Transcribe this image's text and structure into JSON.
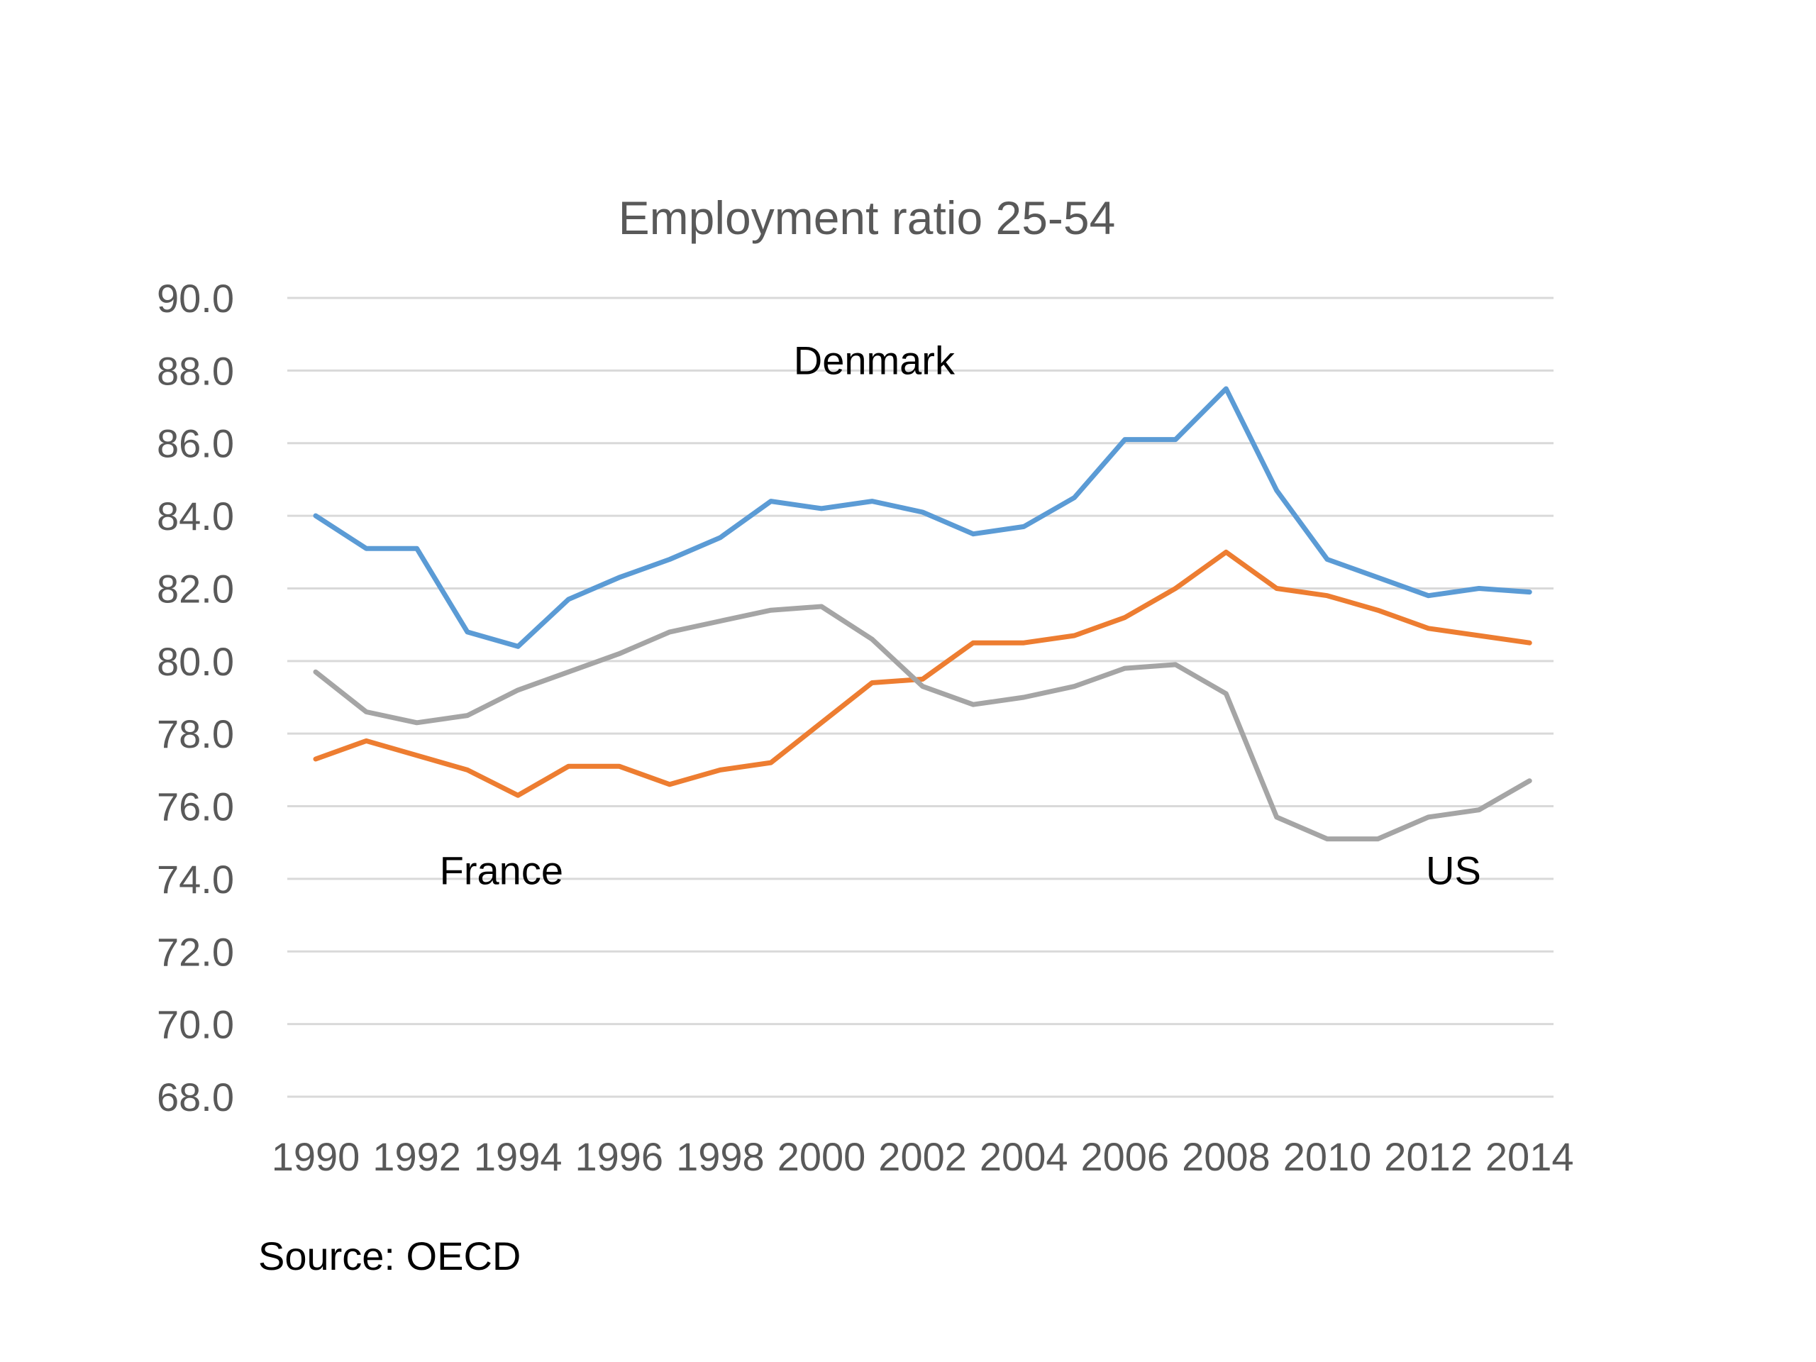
{
  "chart_data": {
    "type": "line",
    "title": "Employment ratio 25-54",
    "xlabel": "",
    "ylabel": "",
    "ylim": [
      68,
      90
    ],
    "y_ticks": [
      "90.0",
      "88.0",
      "86.0",
      "84.0",
      "82.0",
      "80.0",
      "78.0",
      "76.0",
      "74.0",
      "72.0",
      "70.0",
      "68.0"
    ],
    "x_ticks": [
      "1990",
      "1992",
      "1994",
      "1996",
      "1998",
      "2000",
      "2002",
      "2004",
      "2006",
      "2008",
      "2010",
      "2012",
      "2014"
    ],
    "x": [
      1990,
      1991,
      1992,
      1993,
      1994,
      1995,
      1996,
      1997,
      1998,
      1999,
      2000,
      2001,
      2002,
      2003,
      2004,
      2005,
      2006,
      2007,
      2008,
      2009,
      2010,
      2011,
      2012,
      2013,
      2014
    ],
    "grid": true,
    "legend": "none",
    "series": [
      {
        "name": "Denmark",
        "color": "#5B9BD5",
        "values": [
          84.0,
          83.1,
          83.1,
          80.8,
          80.4,
          81.7,
          82.3,
          82.8,
          83.4,
          84.4,
          84.2,
          84.4,
          84.1,
          83.5,
          83.7,
          84.5,
          86.1,
          86.1,
          87.5,
          84.7,
          82.8,
          82.3,
          81.8,
          82.0,
          81.9
        ]
      },
      {
        "name": "France",
        "color": "#ED7D31",
        "values": [
          77.3,
          77.8,
          77.4,
          77.0,
          76.3,
          77.1,
          77.1,
          76.6,
          77.0,
          77.2,
          78.3,
          79.4,
          79.5,
          80.5,
          80.5,
          80.7,
          81.2,
          82.0,
          83.0,
          82.0,
          81.8,
          81.4,
          80.9,
          80.7,
          80.5
        ]
      },
      {
        "name": "US",
        "color": "#A5A5A5",
        "values": [
          79.7,
          78.6,
          78.3,
          78.5,
          79.2,
          79.7,
          80.2,
          80.8,
          81.1,
          81.4,
          81.5,
          80.6,
          79.3,
          78.8,
          79.0,
          79.3,
          79.8,
          79.9,
          79.1,
          75.7,
          75.1,
          75.1,
          75.7,
          75.9,
          76.7
        ]
      }
    ],
    "annotations": [
      {
        "text": "Denmark",
        "x": 1999.45,
        "y": 87.9
      },
      {
        "text": "France",
        "x": 1992.45,
        "y": 73.85
      },
      {
        "text": "US",
        "x": 2011.95,
        "y": 73.85
      }
    ]
  },
  "source": "Source: OECD"
}
